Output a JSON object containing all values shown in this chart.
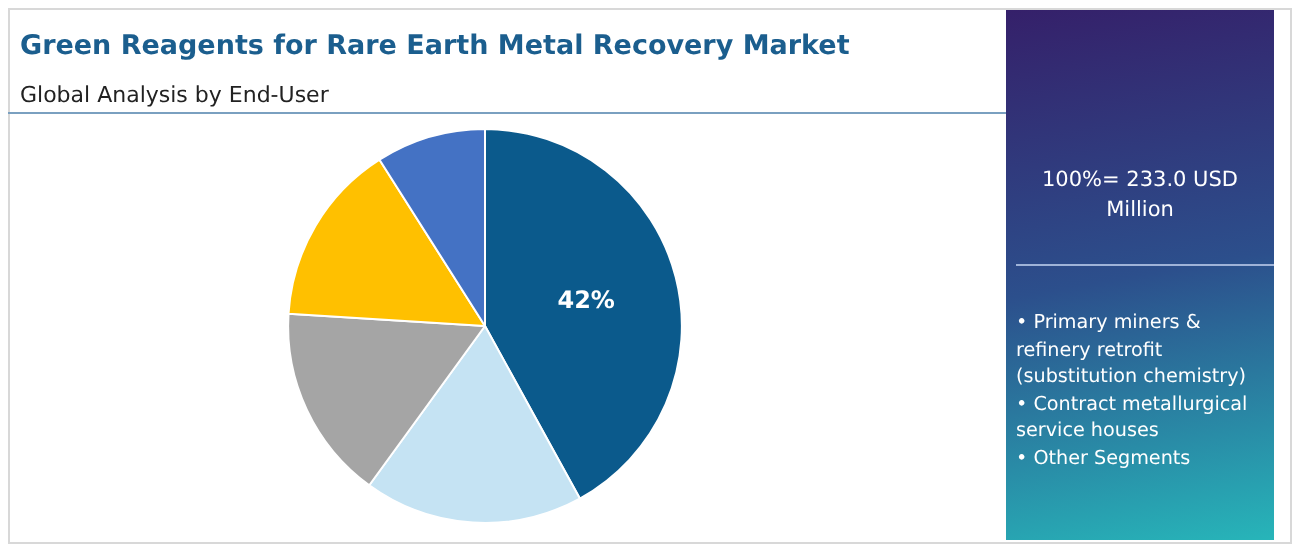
{
  "chart_data": {
    "type": "pie",
    "title": "Green Reagents for Rare Earth Metal Recovery Market",
    "subtitle": "Global Analysis by End-User",
    "categories": [
      null,
      null,
      null,
      null,
      null
    ],
    "values": [
      42,
      18,
      16,
      15,
      9
    ],
    "colors": [
      "#0b5a8c",
      "#c5e3f3",
      "#a5a5a5",
      "#ffc000",
      "#4472c4"
    ],
    "value_labels": [
      "42%",
      null,
      null,
      null,
      null
    ],
    "annotations": [
      "100%= 233.0 USD Million",
      "• Primary miners & refinery retrofit (substitution chemistry)",
      "• Contract metallurgical service houses",
      "• Other Segments"
    ]
  }
}
